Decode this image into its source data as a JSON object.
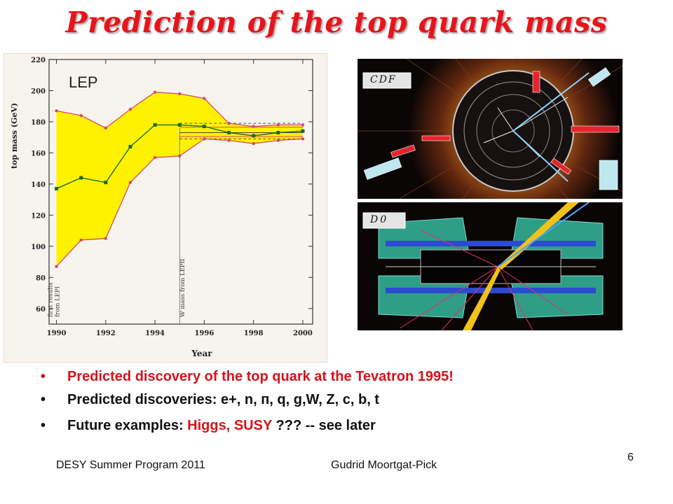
{
  "slide": {
    "title": "Prediction of  the top quark mass",
    "footer_left": "DESY Summer Program 2011",
    "footer_center": "Gudrid Moortgat-Pick",
    "page_number": "6"
  },
  "bullets": [
    {
      "text": "Predicted discovery of the top quark at the Tevatron 1995!"
    },
    {
      "text": "Predicted discoveries: e+, n, п, q, g,W, Z, c, b, t"
    },
    {
      "parts": [
        "Future examples: ",
        "Higgs, SUSY",
        " ??? ",
        "-- see later"
      ]
    }
  ],
  "bullet_symbol": "•",
  "detector_images": [
    {
      "label": "CDF"
    },
    {
      "label": "D0"
    }
  ],
  "chart_data": {
    "type": "area",
    "panel_label": "LEP",
    "title": "",
    "xlabel": "Year",
    "ylabel": "top mass (GeV)",
    "xlim": [
      1989.7,
      2000.4
    ],
    "ylim": [
      50,
      220
    ],
    "x_ticks": [
      "1990",
      "1992",
      "1994",
      "1996",
      "1998",
      "2000"
    ],
    "y_ticks": [
      "60",
      "80",
      "100",
      "120",
      "140",
      "160",
      "180",
      "200",
      "220"
    ],
    "grid": false,
    "band": {
      "x": [
        1990,
        1991,
        1992,
        1993,
        1994,
        1995,
        1996,
        1997,
        1998,
        1999,
        2000
      ],
      "upper": [
        187,
        184,
        176,
        188,
        199,
        198,
        195,
        179,
        177,
        178,
        178
      ],
      "lower": [
        87,
        104,
        105,
        141,
        157,
        158,
        169,
        168,
        166,
        168,
        169
      ]
    },
    "central": {
      "x": [
        1990,
        1991,
        1992,
        1993,
        1994,
        1995,
        1996,
        1997,
        1998,
        1999,
        2000
      ],
      "y": [
        137,
        144,
        141,
        164,
        178,
        178,
        177,
        173,
        171,
        173,
        174
      ]
    },
    "w_mass_lines": {
      "x_range": [
        1995,
        2000
      ],
      "dashed": [
        179,
        169
      ],
      "solid": [
        176.5,
        173,
        170.5
      ]
    },
    "annotations": [
      {
        "text": "first results\nfrom LEPI",
        "x": 1990
      },
      {
        "text": "W mass from LEPII",
        "x": 1995.3
      }
    ],
    "colors": {
      "band": "#fff200",
      "band_edge": "#d9476e",
      "central": "#1b6b2c"
    }
  }
}
